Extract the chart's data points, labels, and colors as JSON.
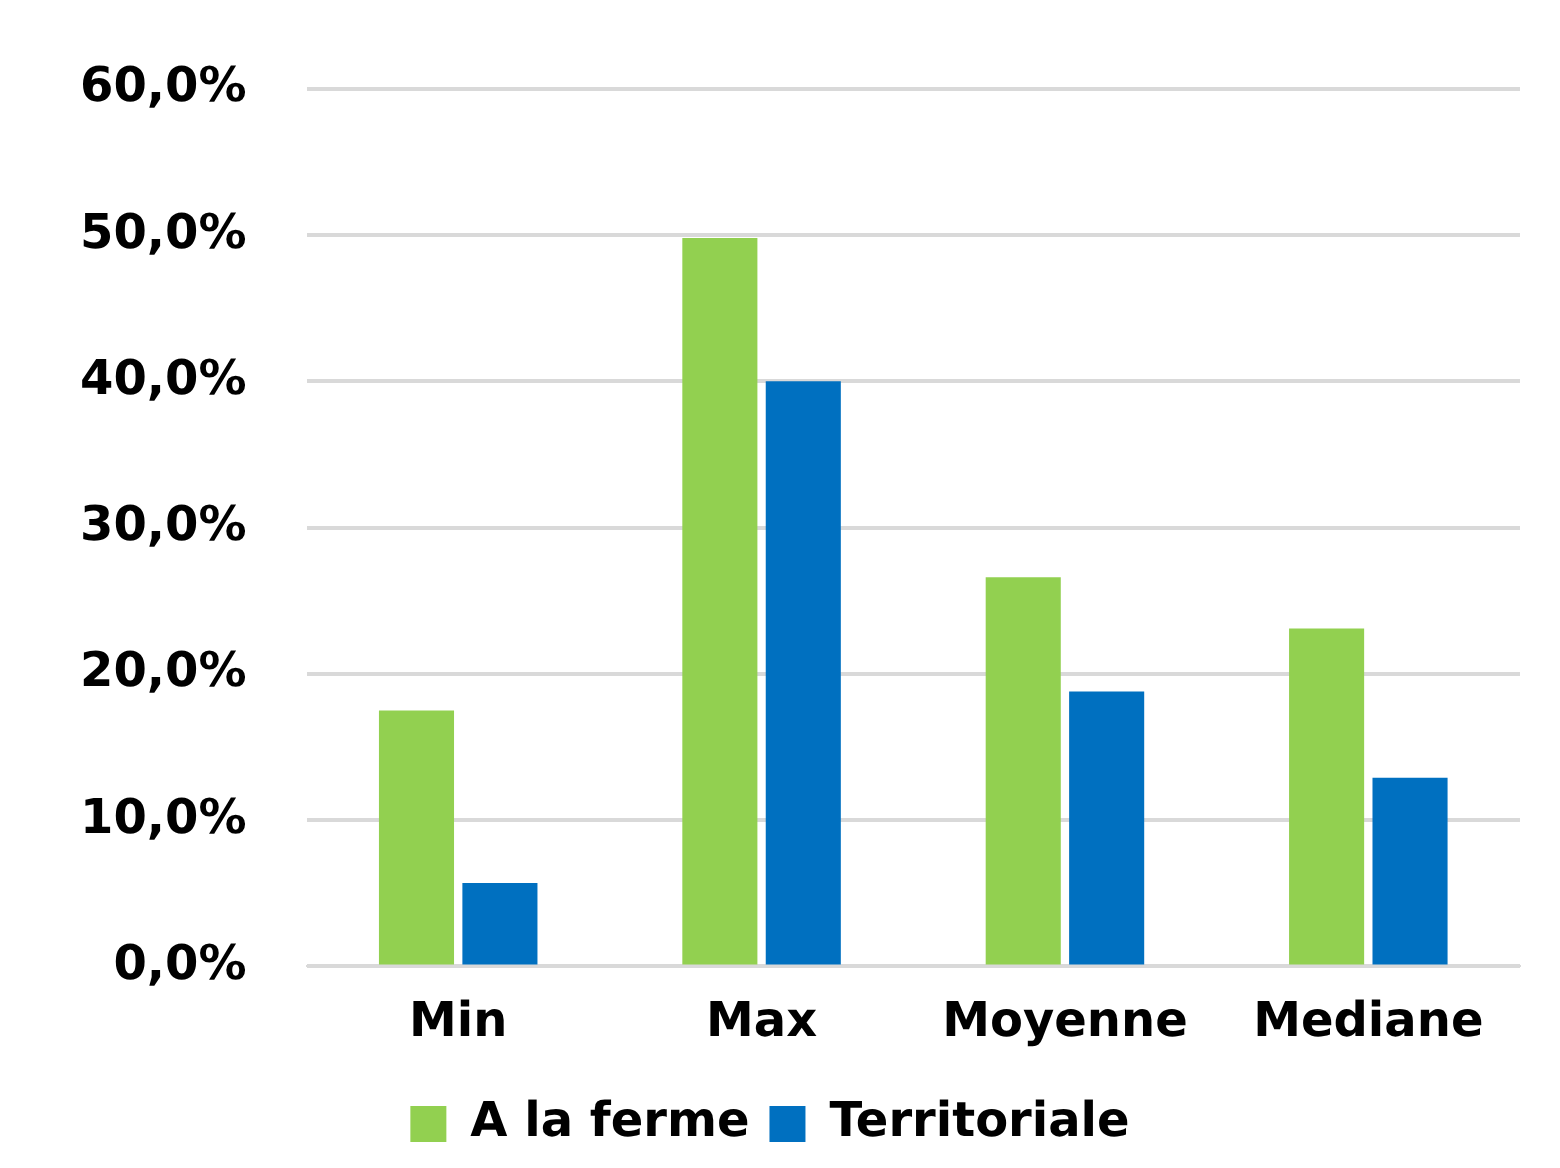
{
  "chart_data": {
    "type": "bar",
    "categories": [
      "Min",
      "Max",
      "Moyenne",
      "Mediane"
    ],
    "series": [
      {
        "name": "A la ferme",
        "color": "#92d050",
        "values": [
          17.5,
          49.8,
          26.6,
          23.1
        ]
      },
      {
        "name": "Territoriale",
        "color": "#0070c0",
        "values": [
          5.7,
          40.0,
          18.8,
          12.9
        ]
      }
    ],
    "ylim": [
      0,
      60
    ],
    "yticks": [
      {
        "value": 0,
        "label": "0,0%"
      },
      {
        "value": 10,
        "label": "10,0%"
      },
      {
        "value": 20,
        "label": "20,0%"
      },
      {
        "value": 30,
        "label": "30,0%"
      },
      {
        "value": 40,
        "label": "40,0%"
      },
      {
        "value": 50,
        "label": "50,0%"
      },
      {
        "value": 60,
        "label": "60,0%"
      }
    ],
    "grid": "y",
    "legend": "bottom"
  }
}
